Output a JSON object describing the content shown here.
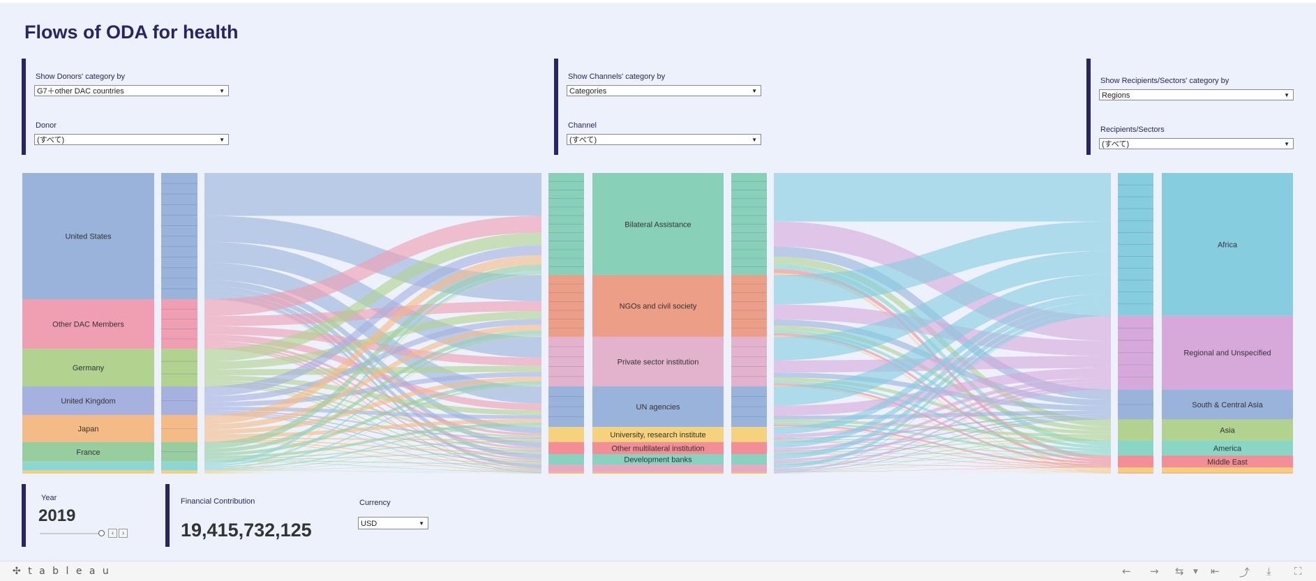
{
  "title": "Flows of ODA for health",
  "filters": {
    "donor_category": {
      "label": "Show Donors' category by",
      "value": "G7＋other DAC countries"
    },
    "donor": {
      "label": "Donor",
      "value": "(すべて)"
    },
    "channel_category": {
      "label": "Show Channels' category by",
      "value": "Categories"
    },
    "channel": {
      "label": "Channel",
      "value": "(すべて)"
    },
    "recipient_category": {
      "label": "Show Recipients/Sectors' category by",
      "value": "Regions"
    },
    "recipient": {
      "label": "Recipients/Sectors",
      "value": "(すべて)"
    }
  },
  "year": {
    "label": "Year",
    "value": "2019"
  },
  "financial": {
    "label": "Financial Contribution",
    "value": "19,415,732,125"
  },
  "currency": {
    "label": "Currency",
    "value": "USD"
  },
  "footer": {
    "brand": "✣ t a b l e a u"
  },
  "chart_data": {
    "type": "sankey",
    "donors": [
      {
        "label": "United States",
        "value": 42.0,
        "color": "#9ab3da"
      },
      {
        "label": "Other DAC Members",
        "value": 16.5,
        "color": "#f09eb2"
      },
      {
        "label": "Germany",
        "value": 12.5,
        "color": "#b2d28f"
      },
      {
        "label": "United Kingdom",
        "value": 9.5,
        "color": "#a7b1df"
      },
      {
        "label": "Japan",
        "value": 9.0,
        "color": "#f5bb86"
      },
      {
        "label": "France",
        "value": 6.5,
        "color": "#98ce9f"
      },
      {
        "label": "",
        "value": 3.0,
        "color": "#8ed6d4"
      },
      {
        "label": "",
        "value": 1.0,
        "color": "#f4d07a"
      }
    ],
    "channels": [
      {
        "label": "Bilateral Assistance",
        "value": 34.0,
        "color": "#89d0b8"
      },
      {
        "label": "NGOs and civil society",
        "value": 20.5,
        "color": "#ec9e87"
      },
      {
        "label": "Private sector institution",
        "value": 16.5,
        "color": "#e3b3cd"
      },
      {
        "label": "UN agencies",
        "value": 13.5,
        "color": "#9ab3da"
      },
      {
        "label": "University, research institute",
        "value": 5.0,
        "color": "#f6d27c"
      },
      {
        "label": "Other multilateral institution",
        "value": 4.0,
        "color": "#f38e96"
      },
      {
        "label": "Development banks",
        "value": 3.5,
        "color": "#88d3c0"
      },
      {
        "label": "",
        "value": 2.5,
        "color": "#e7a8c3"
      },
      {
        "label": "",
        "value": 0.5,
        "color": "#f4c070"
      }
    ],
    "recipients": [
      {
        "label": "Africa",
        "value": 47.5,
        "color": "#86cde0"
      },
      {
        "label": "Regional and Unspecified",
        "value": 24.5,
        "color": "#d7a9db"
      },
      {
        "label": "South & Central Asia",
        "value": 10.0,
        "color": "#9ab3da"
      },
      {
        "label": "Asia",
        "value": 7.0,
        "color": "#b2d28f"
      },
      {
        "label": "America",
        "value": 5.0,
        "color": "#89d6c6"
      },
      {
        "label": "Middle East",
        "value": 4.0,
        "color": "#f38e96"
      },
      {
        "label": "",
        "value": 1.5,
        "color": "#f4d07a"
      },
      {
        "label": "",
        "value": 0.5,
        "color": "#f5bb86"
      }
    ]
  }
}
